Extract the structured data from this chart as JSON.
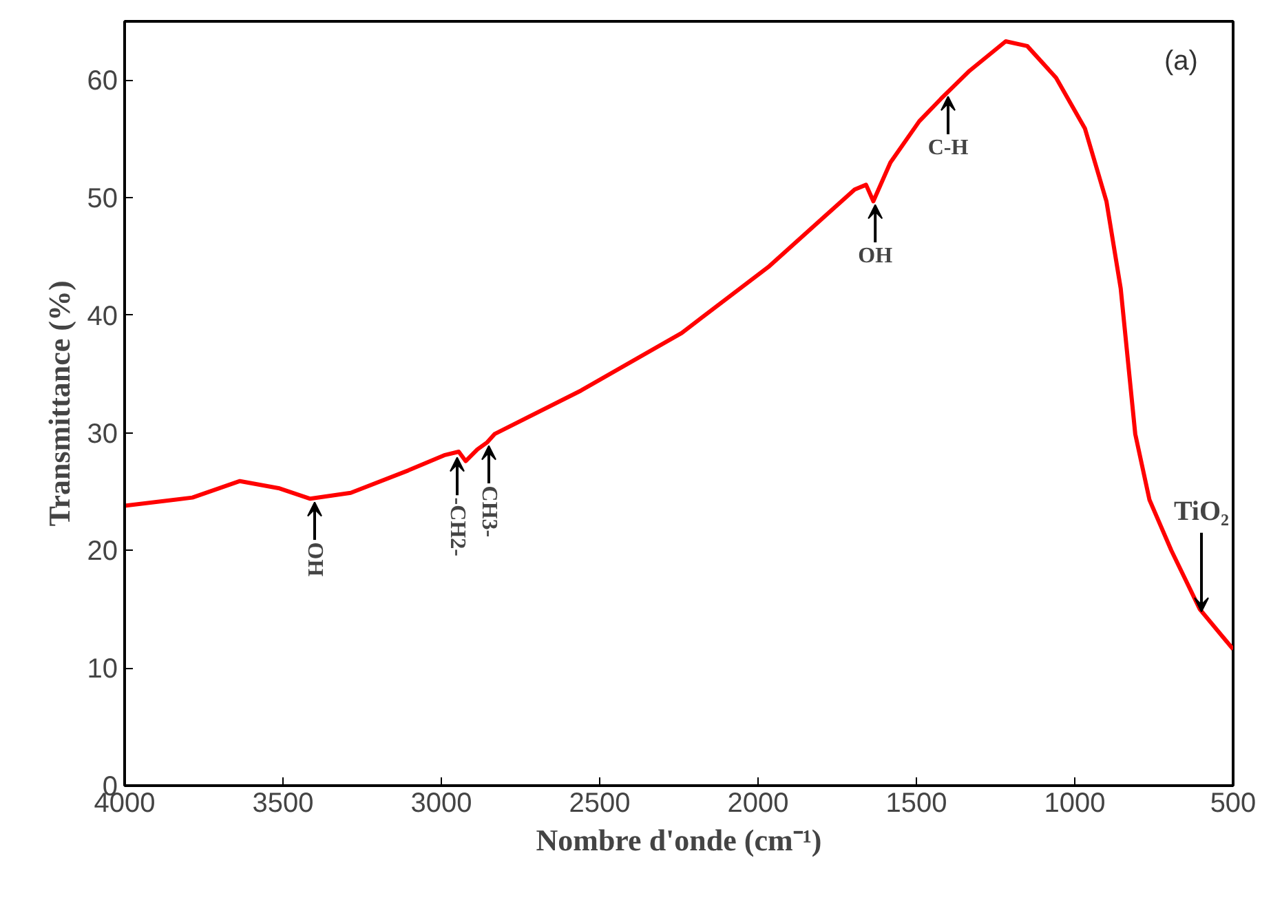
{
  "chart_data": {
    "type": "line",
    "xlabel": "Nombre d'onde (cm⁻¹)",
    "ylabel": "Transmittance (%)",
    "xlim": [
      4000,
      500
    ],
    "ylim": [
      0,
      65
    ],
    "xticks": [
      4000,
      3500,
      3000,
      2500,
      2000,
      1500,
      1000,
      500
    ],
    "yticks": [
      0,
      10,
      20,
      30,
      40,
      50,
      60
    ],
    "marker": "none",
    "line_style": "solid",
    "series": [
      {
        "color": "#ff0000",
        "x": [
          4000,
          3786,
          3636,
          3514,
          3414,
          3286,
          3105,
          2991,
          2945,
          2923,
          2886,
          2855,
          2832,
          2559,
          2241,
          1968,
          1786,
          1695,
          1659,
          1636,
          1582,
          1491,
          1423,
          1332,
          1218,
          1150,
          1059,
          968,
          900,
          855,
          809,
          764,
          695,
          605,
          500
        ],
        "values": [
          23.8,
          24.5,
          25.9,
          25.3,
          24.4,
          24.9,
          26.8,
          28.1,
          28.4,
          27.6,
          28.6,
          29.2,
          29.9,
          33.6,
          38.5,
          44.1,
          48.5,
          50.7,
          51.1,
          49.7,
          53.0,
          56.5,
          58.4,
          60.8,
          63.3,
          62.9,
          60.2,
          55.9,
          49.7,
          42.3,
          29.9,
          24.3,
          20.0,
          15.0,
          11.6
        ]
      }
    ],
    "annotations": [
      "(a)",
      {
        "text": "OH",
        "x": 3400,
        "y": 24.4
      },
      {
        "text": "-CH2-",
        "x": 2950,
        "y": 28.2
      },
      {
        "text": "CH3-",
        "x": 2850,
        "y": 29.2
      },
      {
        "text": "OH",
        "x": 1630,
        "y": 49.7
      },
      {
        "text": "C-H",
        "x": 1400,
        "y": 58.9
      },
      {
        "text": "TiO₂",
        "x": 600,
        "y": 14.5
      }
    ]
  }
}
